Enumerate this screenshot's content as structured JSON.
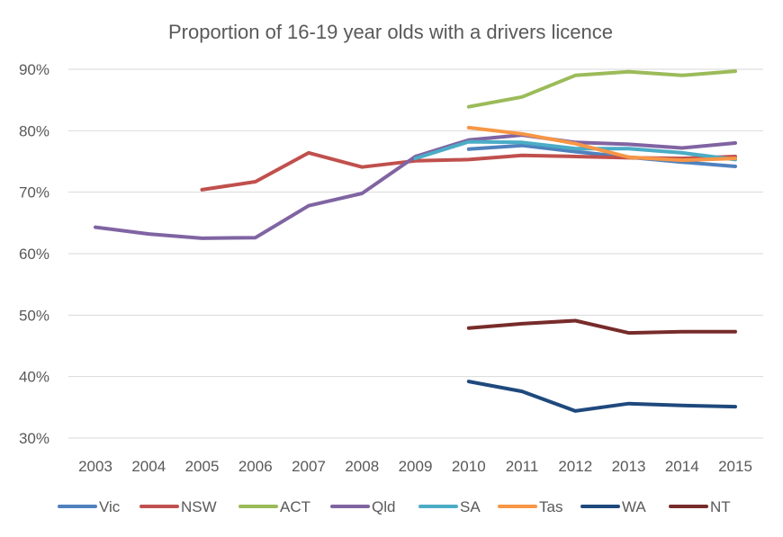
{
  "chart_data": {
    "type": "line",
    "title": "Proportion of 16-19 year olds with a drivers licence",
    "xlabel": "",
    "ylabel": "",
    "x": [
      "2003",
      "2004",
      "2005",
      "2006",
      "2007",
      "2008",
      "2009",
      "2010",
      "2011",
      "2012",
      "2013",
      "2014",
      "2015"
    ],
    "ylim": [
      30,
      90
    ],
    "yticks": [
      90,
      80,
      70,
      60,
      50,
      40,
      30
    ],
    "ytick_labels": [
      "90%",
      "80%",
      "70%",
      "60%",
      "50%",
      "40%",
      "30%"
    ],
    "grid": true,
    "legend_position": "bottom",
    "series": [
      {
        "name": "Vic",
        "color": "#4f81bd",
        "values": [
          null,
          null,
          null,
          null,
          null,
          null,
          null,
          77.0,
          77.6,
          76.6,
          75.7,
          74.9,
          74.2
        ]
      },
      {
        "name": "NSW",
        "color": "#c0504d",
        "values": [
          null,
          null,
          70.4,
          71.7,
          76.4,
          74.1,
          75.1,
          75.3,
          76.0,
          75.8,
          75.6,
          75.5,
          75.8
        ]
      },
      {
        "name": "ACT",
        "color": "#9bbb59",
        "values": [
          null,
          null,
          null,
          null,
          null,
          null,
          null,
          83.9,
          85.5,
          89.0,
          89.6,
          89.0,
          89.7
        ]
      },
      {
        "name": "Qld",
        "color": "#8064a2",
        "values": [
          64.3,
          63.2,
          62.5,
          62.6,
          67.8,
          69.8,
          75.8,
          78.5,
          79.3,
          78.1,
          77.8,
          77.2,
          78.0
        ]
      },
      {
        "name": "SA",
        "color": "#4bacc6",
        "values": [
          null,
          null,
          null,
          null,
          null,
          null,
          75.5,
          78.2,
          78.1,
          77.1,
          77.1,
          76.4,
          75.3
        ]
      },
      {
        "name": "Tas",
        "color": "#f79646",
        "values": [
          null,
          null,
          null,
          null,
          null,
          null,
          null,
          80.5,
          79.5,
          77.9,
          75.7,
          75.2,
          75.5
        ]
      },
      {
        "name": "WA",
        "color": "#1f497d",
        "values": [
          null,
          null,
          null,
          null,
          null,
          null,
          null,
          39.2,
          37.6,
          34.4,
          35.6,
          35.3,
          35.1
        ]
      },
      {
        "name": "NT",
        "color": "#772c2a",
        "values": [
          null,
          null,
          null,
          null,
          null,
          null,
          null,
          47.9,
          48.6,
          49.1,
          47.1,
          47.3,
          47.3
        ]
      }
    ]
  }
}
